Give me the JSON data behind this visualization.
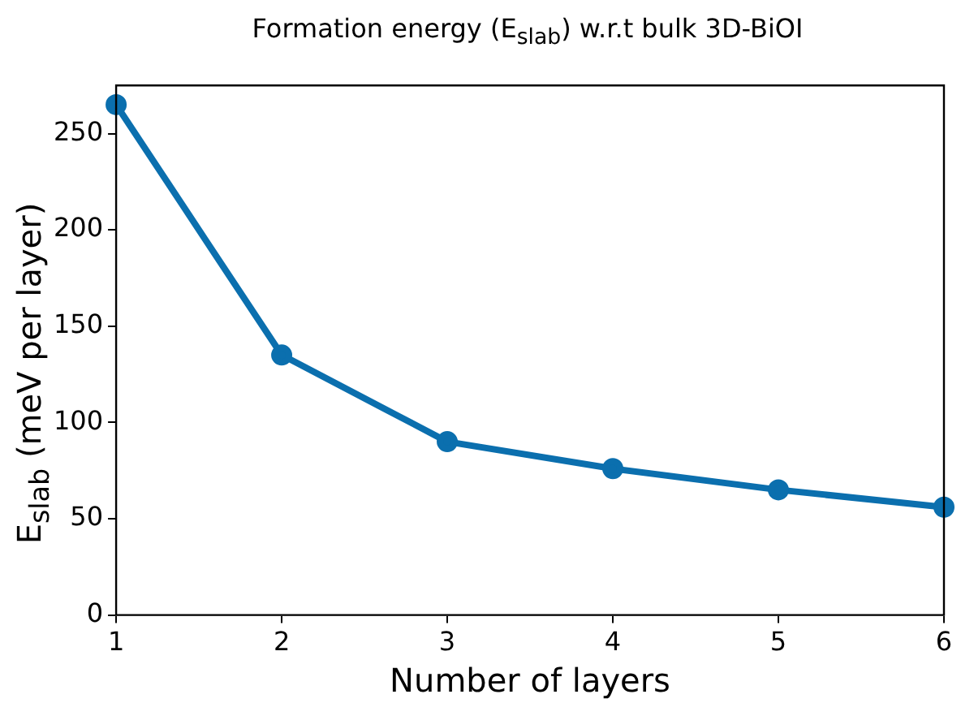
{
  "chart_data": {
    "type": "line",
    "title": "Formation energy (E$_{slab}$) w.r.t bulk 3D-BiOI",
    "xlabel": "Number of layers",
    "ylabel": "E$_{slab}$ (meV per layer)",
    "x": [
      1,
      2,
      3,
      4,
      5,
      6
    ],
    "series": [
      {
        "color": "#0b6fae",
        "values": [
          265,
          135,
          90,
          76,
          65,
          56
        ]
      }
    ],
    "xlim": [
      1,
      6
    ],
    "xticks": [
      1,
      2,
      3,
      4,
      5,
      6
    ],
    "ylim": [
      0,
      275
    ],
    "yticks": [
      0,
      50,
      100,
      150,
      200,
      250
    ],
    "marker": "circle",
    "line_style": "solid"
  }
}
